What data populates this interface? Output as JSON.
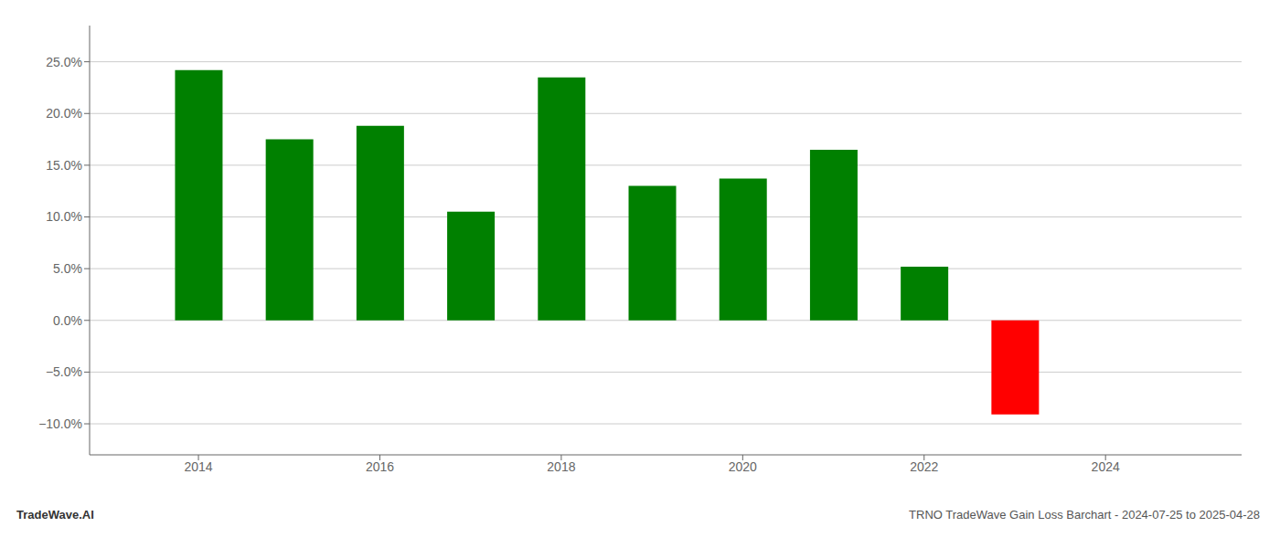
{
  "chart_data": {
    "type": "bar",
    "x": [
      2014,
      2015,
      2016,
      2017,
      2018,
      2019,
      2020,
      2021,
      2022,
      2023
    ],
    "values": [
      0.242,
      0.175,
      0.188,
      0.105,
      0.235,
      0.13,
      0.137,
      0.165,
      0.052,
      -0.091
    ],
    "colors": [
      "#008000",
      "#008000",
      "#008000",
      "#008000",
      "#008000",
      "#008000",
      "#008000",
      "#008000",
      "#008000",
      "#ff0000"
    ],
    "xlim": [
      2012.8,
      2025.5
    ],
    "xticks": [
      2014,
      2016,
      2018,
      2020,
      2022,
      2024
    ],
    "ylim": [
      -0.13,
      0.285
    ],
    "yticks": [
      {
        "value": -0.1,
        "label": "−10.0%"
      },
      {
        "value": -0.05,
        "label": "−5.0%"
      },
      {
        "value": 0.0,
        "label": "0.0%"
      },
      {
        "value": 0.05,
        "label": "5.0%"
      },
      {
        "value": 0.1,
        "label": "10.0%"
      },
      {
        "value": 0.15,
        "label": "15.0%"
      },
      {
        "value": 0.2,
        "label": "20.0%"
      },
      {
        "value": 0.25,
        "label": "25.0%"
      }
    ],
    "grid": true,
    "annotations": [
      "TradeWave.AI",
      "TRNO TradeWave Gain Loss Barchart - 2024-07-25 to 2025-04-28"
    ]
  }
}
